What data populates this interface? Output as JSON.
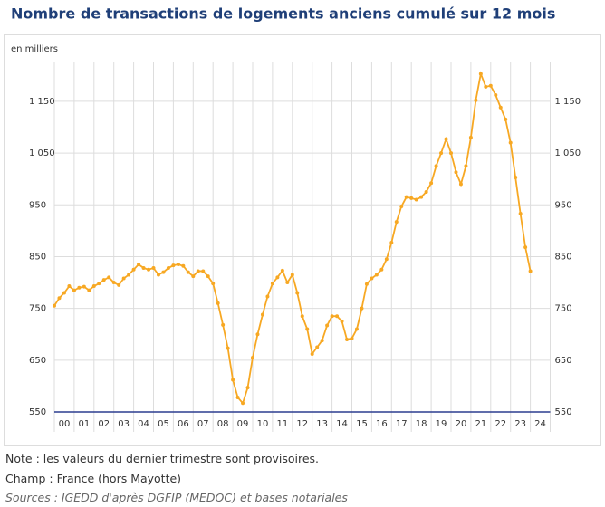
{
  "chart_data": {
    "type": "line",
    "title": "Nombre de transactions de logements anciens cumulé sur 12 mois",
    "y_label": "en milliers",
    "x": [
      0,
      0.25,
      0.5,
      0.75,
      1,
      1.25,
      1.5,
      1.75,
      2,
      2.25,
      2.5,
      2.75,
      3,
      3.25,
      3.5,
      3.75,
      4,
      4.25,
      4.5,
      4.75,
      5,
      5.25,
      5.5,
      5.75,
      6,
      6.25,
      6.5,
      6.75,
      7,
      7.25,
      7.5,
      7.75,
      8,
      8.25,
      8.5,
      8.75,
      9,
      9.25,
      9.5,
      9.75,
      10,
      10.25,
      10.5,
      10.75,
      11,
      11.25,
      11.5,
      11.75,
      12,
      12.25,
      12.5,
      12.75,
      13,
      13.25,
      13.5,
      13.75,
      14,
      14.25,
      14.5,
      14.75,
      15,
      15.25,
      15.5,
      15.75,
      16,
      16.25,
      16.5,
      16.75,
      17,
      17.25,
      17.5,
      17.75,
      18,
      18.25,
      18.5,
      18.75,
      19,
      19.25,
      19.5,
      19.75,
      20,
      20.25,
      20.5,
      20.75,
      21,
      21.25,
      21.5,
      21.75,
      22,
      22.25,
      22.5,
      22.75,
      23,
      23.25,
      23.5,
      23.75,
      24
    ],
    "series": [
      {
        "name": "Transactions",
        "color": "#f7a823",
        "values": [
          755,
          770,
          780,
          793,
          785,
          790,
          792,
          785,
          793,
          798,
          805,
          810,
          800,
          795,
          808,
          815,
          825,
          835,
          828,
          825,
          828,
          815,
          820,
          828,
          833,
          835,
          832,
          820,
          812,
          822,
          822,
          812,
          798,
          760,
          718,
          673,
          612,
          578,
          567,
          597,
          655,
          700,
          738,
          773,
          798,
          810,
          823,
          800,
          815,
          780,
          735,
          710,
          662,
          675,
          688,
          717,
          735,
          735,
          725,
          690,
          692,
          710,
          750,
          797,
          808,
          815,
          825,
          845,
          877,
          917,
          947,
          965,
          963,
          960,
          965,
          975,
          992,
          1025,
          1050,
          1077,
          1050,
          1013,
          990,
          1025,
          1080,
          1152,
          1203,
          1178,
          1180,
          1162,
          1138,
          1115,
          1070,
          1003,
          933,
          868,
          822
        ]
      }
    ],
    "xlim": [
      0,
      25
    ],
    "xticks": [
      {
        "value": 0.5,
        "label": "00"
      },
      {
        "value": 1.5,
        "label": "01"
      },
      {
        "value": 2.5,
        "label": "02"
      },
      {
        "value": 3.5,
        "label": "03"
      },
      {
        "value": 4.5,
        "label": "04"
      },
      {
        "value": 5.5,
        "label": "05"
      },
      {
        "value": 6.5,
        "label": "06"
      },
      {
        "value": 7.5,
        "label": "07"
      },
      {
        "value": 8.5,
        "label": "08"
      },
      {
        "value": 9.5,
        "label": "09"
      },
      {
        "value": 10.5,
        "label": "10"
      },
      {
        "value": 11.5,
        "label": "11"
      },
      {
        "value": 12.5,
        "label": "12"
      },
      {
        "value": 13.5,
        "label": "13"
      },
      {
        "value": 14.5,
        "label": "14"
      },
      {
        "value": 15.5,
        "label": "15"
      },
      {
        "value": 16.5,
        "label": "16"
      },
      {
        "value": 17.5,
        "label": "17"
      },
      {
        "value": 18.5,
        "label": "18"
      },
      {
        "value": 19.5,
        "label": "19"
      },
      {
        "value": 20.5,
        "label": "20"
      },
      {
        "value": 21.5,
        "label": "21"
      },
      {
        "value": 22.5,
        "label": "22"
      },
      {
        "value": 23.5,
        "label": "23"
      },
      {
        "value": 24.5,
        "label": "24"
      }
    ],
    "ylim": [
      550,
      1225
    ],
    "yticks": [
      550,
      650,
      750,
      850,
      950,
      {
        "value": 1050,
        "label": "1 050"
      },
      {
        "value": 1150,
        "label": "1 150"
      }
    ],
    "grid": true,
    "notes": [
      "Note : les valeurs du dernier trimestre sont provisoires.",
      "Champ : France (hors Mayotte)",
      "Sources : IGEDD d'après DGFIP (MEDOC) et bases notariales"
    ]
  }
}
